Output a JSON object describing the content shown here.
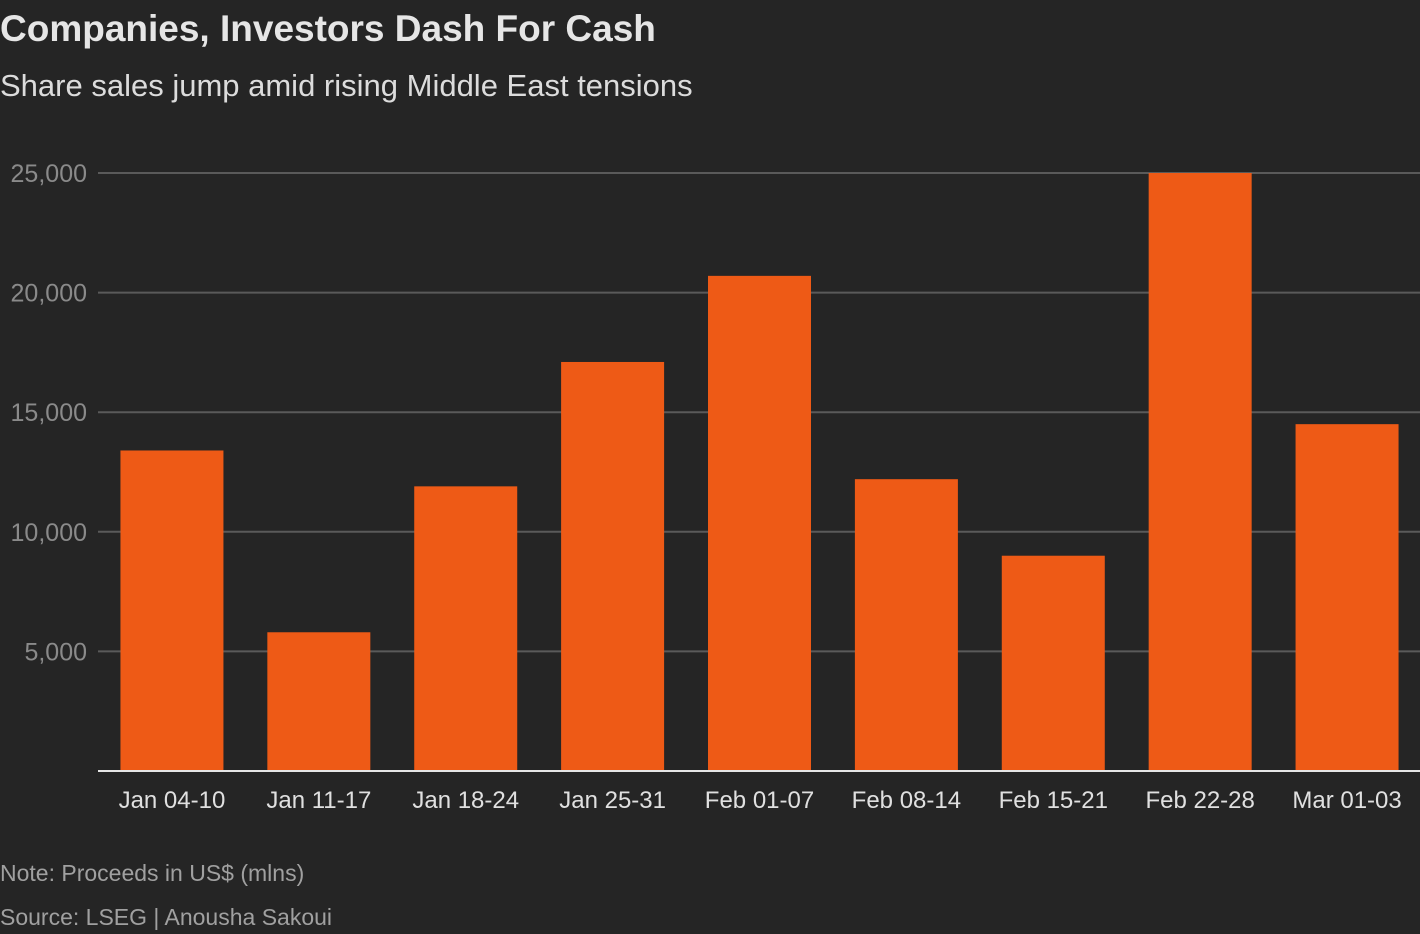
{
  "chart_data": {
    "type": "bar",
    "title": "Companies, Investors Dash For Cash",
    "subtitle": "Share sales jump amid rising Middle East tensions",
    "categories": [
      "Jan 04-10",
      "Jan 11-17",
      "Jan 18-24",
      "Jan 25-31",
      "Feb 01-07",
      "Feb 08-14",
      "Feb 15-21",
      "Feb 22-28",
      "Mar 01-03"
    ],
    "values": [
      13400,
      5800,
      11900,
      17100,
      20700,
      12200,
      9000,
      25000,
      14500
    ],
    "xlabel": "",
    "ylabel": "",
    "ylim": [
      0,
      25000
    ],
    "yticks": [
      5000,
      10000,
      15000,
      20000,
      25000
    ],
    "ytick_labels": [
      "5,000",
      "10,000",
      "15,000",
      "20,000",
      "25,000"
    ],
    "grid": true,
    "legend": "none",
    "colors": {
      "bar": "#ee5a16",
      "background": "#252525",
      "grid": "#5a5a5a",
      "axis": "#e6e6e6"
    },
    "note": "Note: Proceeds in US$ (mlns)",
    "source": "Source: LSEG | Anousha Sakoui"
  }
}
